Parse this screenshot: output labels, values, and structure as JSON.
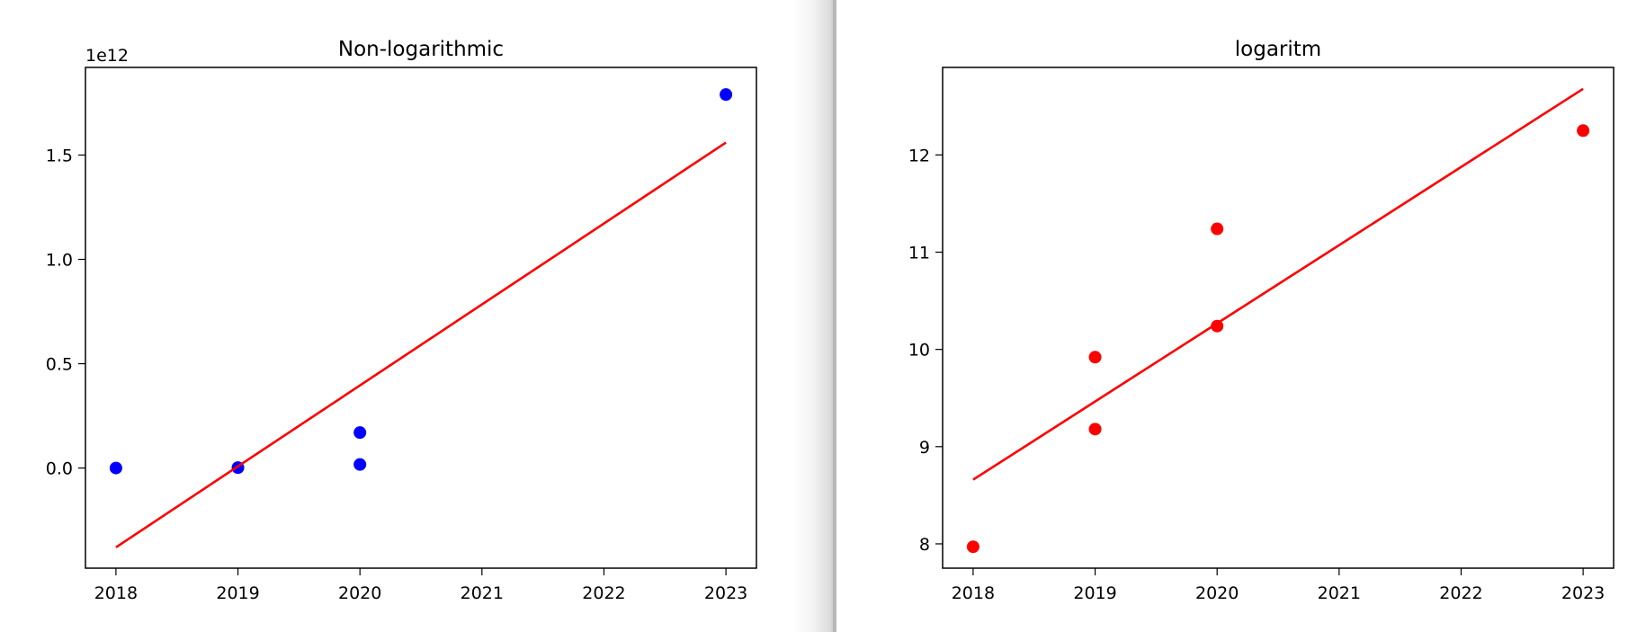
{
  "chart_data": [
    {
      "type": "scatter",
      "title": "Non-logarithmic",
      "offset_text": "1e12",
      "xlabel": "",
      "ylabel": "",
      "x_ticks": [
        "2018",
        "2019",
        "2020",
        "2021",
        "2022",
        "2023"
      ],
      "y_ticks": [
        "0.0",
        "0.5",
        "1.0",
        "1.5"
      ],
      "xlim": [
        2017.75,
        2023.25
      ],
      "ylim": [
        -0.48,
        1.92
      ],
      "grid": false,
      "series": [
        {
          "kind": "points",
          "color": "#0000ff",
          "points": [
            {
              "x": 2018,
              "y": 0.0
            },
            {
              "x": 2019,
              "y": 0.002
            },
            {
              "x": 2020,
              "y": 0.17
            },
            {
              "x": 2020,
              "y": 0.017
            },
            {
              "x": 2023,
              "y": 1.79
            }
          ]
        },
        {
          "kind": "line",
          "color": "#ff0000",
          "points": [
            {
              "x": 2018,
              "y": -0.38
            },
            {
              "x": 2023,
              "y": 1.56
            }
          ]
        }
      ]
    },
    {
      "type": "scatter",
      "title": "logaritm",
      "offset_text": "",
      "xlabel": "",
      "ylabel": "",
      "x_ticks": [
        "2018",
        "2019",
        "2020",
        "2021",
        "2022",
        "2023"
      ],
      "y_ticks": [
        "8",
        "9",
        "10",
        "11",
        "12"
      ],
      "xlim": [
        2017.75,
        2023.25
      ],
      "ylim": [
        7.75,
        12.9
      ],
      "grid": false,
      "series": [
        {
          "kind": "points",
          "color": "#ff0000",
          "points": [
            {
              "x": 2018,
              "y": 7.97
            },
            {
              "x": 2019,
              "y": 9.92
            },
            {
              "x": 2019,
              "y": 9.18
            },
            {
              "x": 2020,
              "y": 11.24
            },
            {
              "x": 2020,
              "y": 10.24
            },
            {
              "x": 2023,
              "y": 12.25
            }
          ]
        },
        {
          "kind": "line",
          "color": "#ff0000",
          "points": [
            {
              "x": 2018,
              "y": 8.66
            },
            {
              "x": 2023,
              "y": 12.68
            }
          ]
        }
      ]
    }
  ]
}
